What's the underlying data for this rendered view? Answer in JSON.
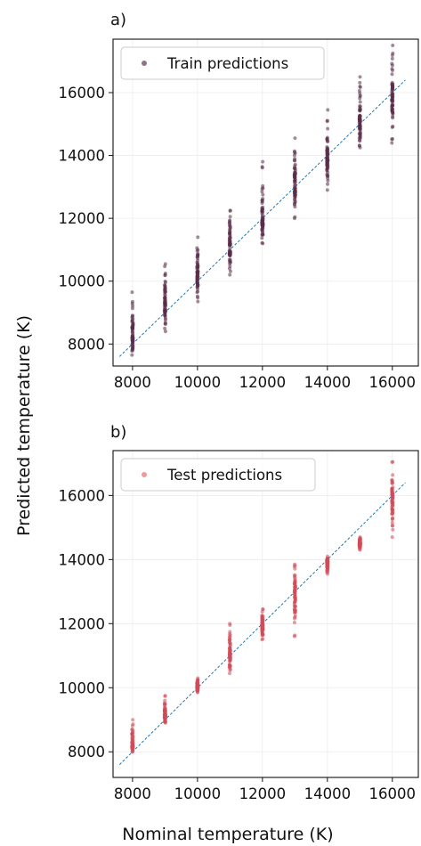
{
  "figure": {
    "shared_xlabel": "Nominal temperature (K)",
    "shared_ylabel": "Predicted temperature (K)"
  },
  "chart_data": [
    {
      "type": "scatter",
      "panel_label": "a)",
      "legend": {
        "label": "Train predictions",
        "position": "top-left"
      },
      "point_color": "#5a2d48",
      "legend_marker_color": "#8f7386",
      "reference_line": {
        "x": [
          7600,
          16400
        ],
        "y": [
          7600,
          16400
        ],
        "color": "#1f77b4",
        "style": "dashed"
      },
      "xlim": [
        7400,
        16800
      ],
      "ylim": [
        7300,
        17700
      ],
      "xticks": [
        8000,
        10000,
        12000,
        14000,
        16000
      ],
      "yticks": [
        8000,
        10000,
        12000,
        14000,
        16000
      ],
      "grid": true,
      "groups": [
        {
          "x": 8000,
          "ymin": 7650,
          "ymax": 9650,
          "center": 8250
        },
        {
          "x": 9000,
          "ymin": 8400,
          "ymax": 10550,
          "center": 9300
        },
        {
          "x": 10000,
          "ymin": 9350,
          "ymax": 11400,
          "center": 10100
        },
        {
          "x": 11000,
          "ymin": 10200,
          "ymax": 12250,
          "center": 11200
        },
        {
          "x": 12000,
          "ymin": 11200,
          "ymax": 13800,
          "center": 11950
        },
        {
          "x": 13000,
          "ymin": 12000,
          "ymax": 14550,
          "center": 13050
        },
        {
          "x": 14000,
          "ymin": 12900,
          "ymax": 15450,
          "center": 13900
        },
        {
          "x": 15000,
          "ymin": 14250,
          "ymax": 16500,
          "center": 15000
        },
        {
          "x": 16000,
          "ymin": 14400,
          "ymax": 17500,
          "center": 15800
        }
      ]
    },
    {
      "type": "scatter",
      "panel_label": "b)",
      "legend": {
        "label": "Test predictions",
        "position": "top-left"
      },
      "point_color": "#d24a58",
      "legend_marker_color": "#ec9aa0",
      "reference_line": {
        "x": [
          7600,
          16400
        ],
        "y": [
          7600,
          16400
        ],
        "color": "#1f77b4",
        "style": "dashed"
      },
      "xlim": [
        7400,
        16800
      ],
      "ylim": [
        7200,
        17400
      ],
      "xticks": [
        8000,
        10000,
        12000,
        14000,
        16000
      ],
      "yticks": [
        8000,
        10000,
        12000,
        14000,
        16000
      ],
      "grid": true,
      "groups": [
        {
          "x": 8000,
          "ymin": 8000,
          "ymax": 9000,
          "center": 8200
        },
        {
          "x": 9000,
          "ymin": 8900,
          "ymax": 9750,
          "center": 9150
        },
        {
          "x": 10000,
          "ymin": 9850,
          "ymax": 10300,
          "center": 10050
        },
        {
          "x": 11000,
          "ymin": 10450,
          "ymax": 12000,
          "center": 11050
        },
        {
          "x": 12000,
          "ymin": 11500,
          "ymax": 12450,
          "center": 11900
        },
        {
          "x": 13000,
          "ymin": 11600,
          "ymax": 13850,
          "center": 12900
        },
        {
          "x": 14000,
          "ymin": 13550,
          "ymax": 14100,
          "center": 13900
        },
        {
          "x": 15000,
          "ymin": 14300,
          "ymax": 14700,
          "center": 14500
        },
        {
          "x": 16000,
          "ymin": 14700,
          "ymax": 17050,
          "center": 15800
        }
      ]
    }
  ]
}
